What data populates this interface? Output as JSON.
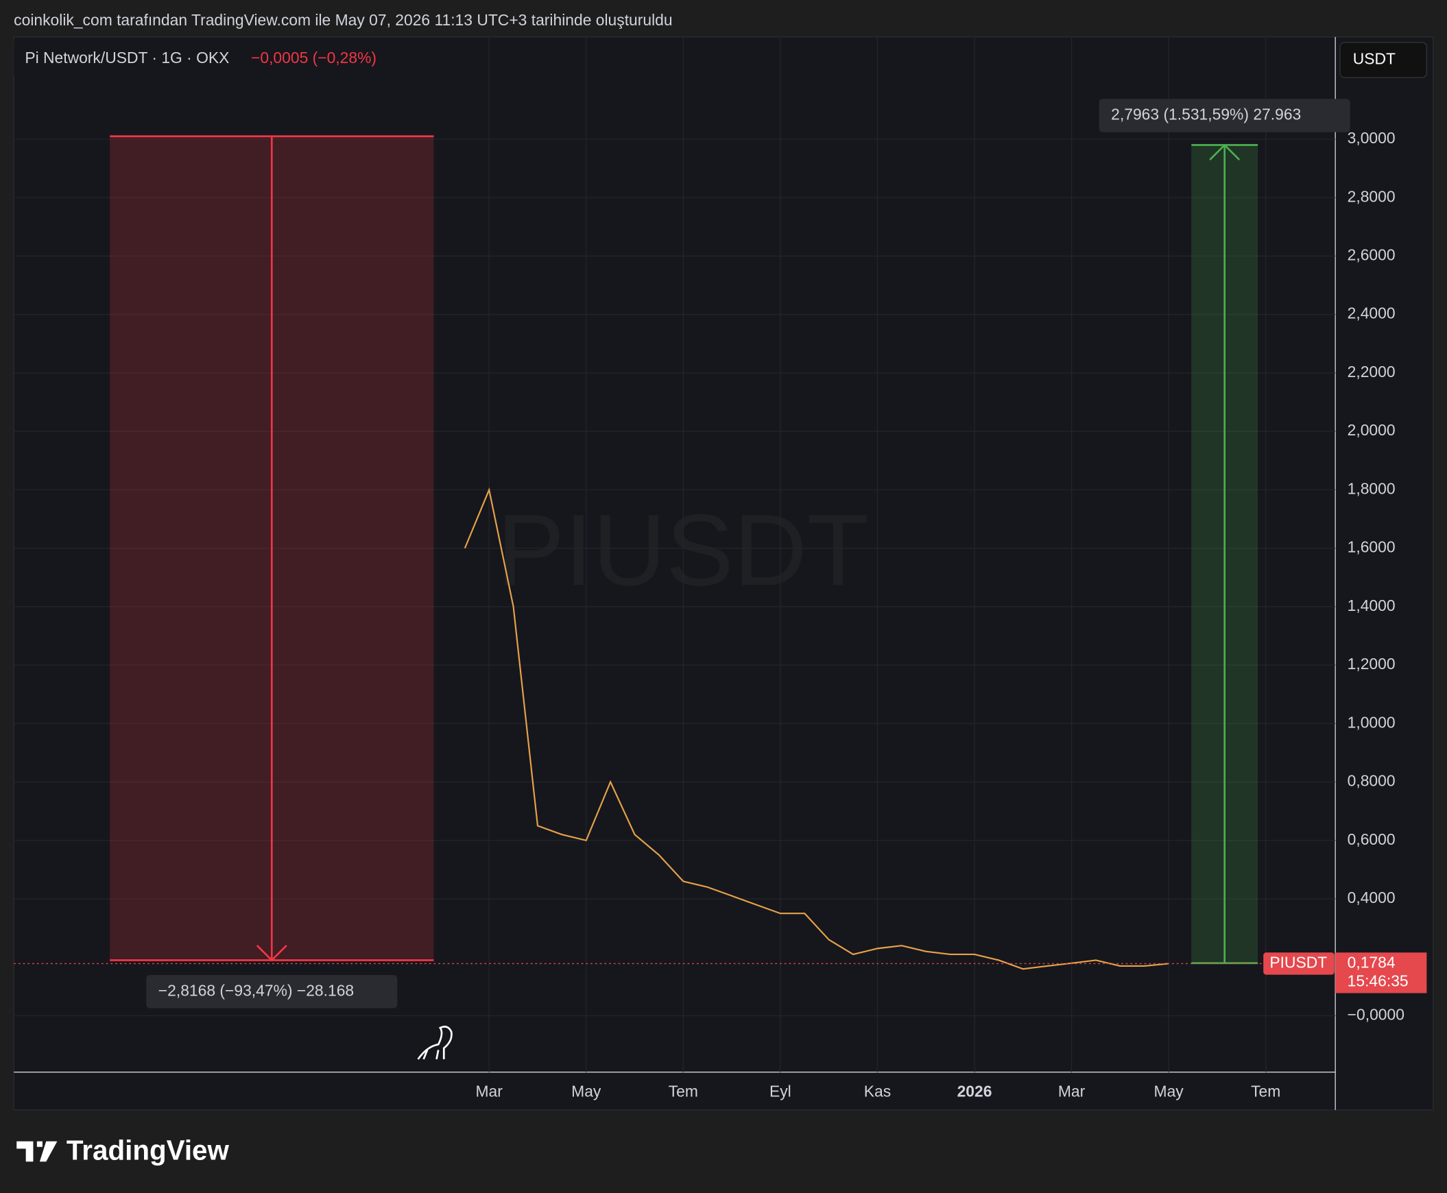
{
  "header": "coinkolik_com tarafından TradingView.com ile May 07, 2026 11:13 UTC+3 tarihinde oluşturuldu",
  "chart_data": {
    "type": "line",
    "symbol": "Pi Network/USDT · 1G · OKX",
    "change": "−0,0005 (−0,28%)",
    "currency": "USDT",
    "watermark": "PIUSDT",
    "categories": [
      null,
      null,
      null,
      null,
      null,
      null,
      null,
      null,
      null,
      null,
      null,
      null,
      null,
      null,
      null,
      null,
      null,
      null,
      null,
      null,
      "Mar",
      null,
      null,
      null,
      "May",
      null,
      null,
      null,
      "Tem",
      null,
      null,
      null,
      "Eyl",
      null,
      null,
      null,
      "Kas",
      null,
      null,
      null,
      "2026",
      null,
      null,
      null,
      "Mar",
      null,
      null,
      null,
      "May",
      null,
      null,
      null,
      "Tem",
      null,
      null
    ],
    "series": [
      {
        "name": "PIUSDT",
        "color": "#e8a24a",
        "values": [
          null,
          null,
          null,
          null,
          null,
          null,
          null,
          null,
          null,
          null,
          null,
          null,
          null,
          null,
          null,
          null,
          null,
          null,
          null,
          1.6,
          1.8,
          1.4,
          0.65,
          0.62,
          0.6,
          0.8,
          0.62,
          0.55,
          0.46,
          0.44,
          0.41,
          0.38,
          0.35,
          0.35,
          0.26,
          0.21,
          0.23,
          0.24,
          0.22,
          0.21,
          0.21,
          0.19,
          0.16,
          0.17,
          0.18,
          0.19,
          0.17,
          0.17,
          0.1784,
          null,
          null,
          null,
          null,
          null,
          null
        ]
      }
    ],
    "ylim": [
      -0.193,
      3.35
    ],
    "yticks": [
      {
        "value": 0,
        "label": "−0,0000"
      },
      {
        "value": 0.4,
        "label": "0,4000"
      },
      {
        "value": 0.6,
        "label": "0,6000"
      },
      {
        "value": 0.8,
        "label": "0,8000"
      },
      {
        "value": 1.0,
        "label": "1,0000"
      },
      {
        "value": 1.2,
        "label": "1,2000"
      },
      {
        "value": 1.4,
        "label": "1,4000"
      },
      {
        "value": 1.6,
        "label": "1,6000"
      },
      {
        "value": 1.8,
        "label": "1,8000"
      },
      {
        "value": 2.0,
        "label": "2,0000"
      },
      {
        "value": 2.2,
        "label": "2,2000"
      },
      {
        "value": 2.4,
        "label": "2,4000"
      },
      {
        "value": 2.6,
        "label": "2,6000"
      },
      {
        "value": 2.8,
        "label": "2,8000"
      },
      {
        "value": 3.0,
        "label": "3,0000"
      }
    ],
    "grid": true,
    "last_price": {
      "value": 0.1784,
      "label": "0,1784",
      "name": "PIUSDT",
      "countdown": "15:46:35",
      "color": "#e5484d"
    },
    "measurements": [
      {
        "from": 3.01,
        "to": 0.19,
        "label": "−2,8168 (−93,47%) −28.168",
        "color": "#f23645"
      },
      {
        "from": 0.18,
        "to": 2.98,
        "label": "2,7963 (1.531,59%) 27.963",
        "color": "#4caf50"
      }
    ]
  },
  "brand": "TradingView"
}
